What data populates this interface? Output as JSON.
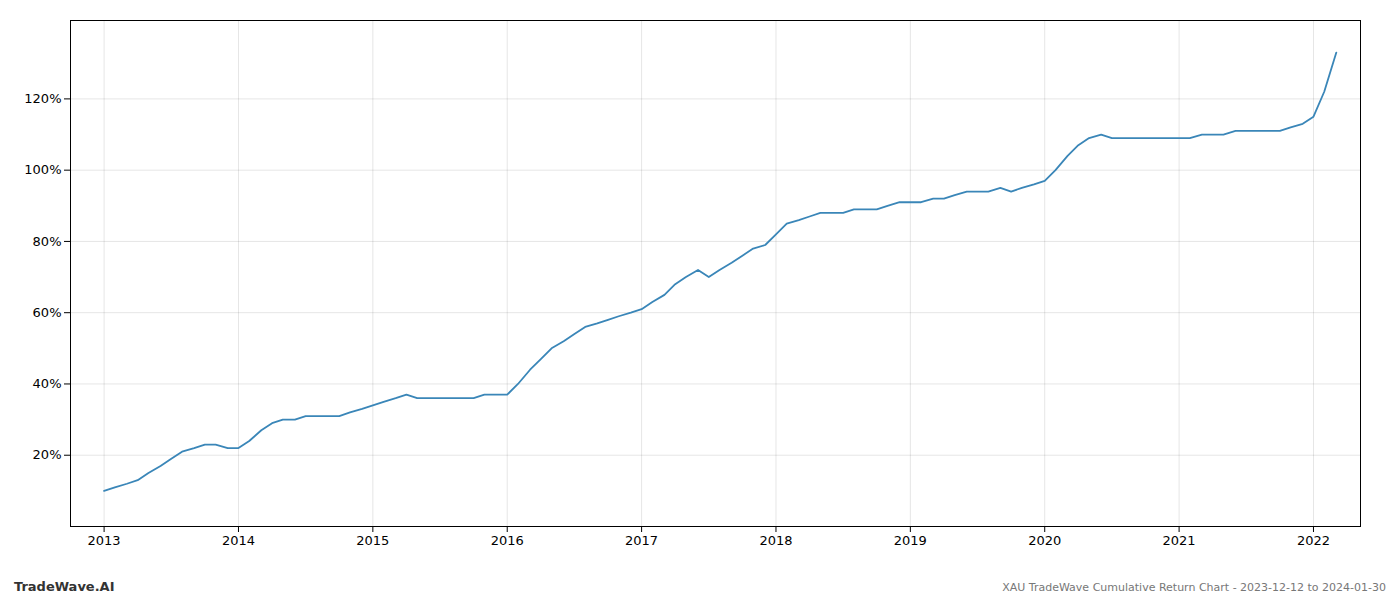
{
  "chart_data": {
    "type": "line",
    "title": "XAU TradeWave Cumulative Return Chart - 2023-12-12 to 2024-01-30",
    "annotations": [
      "TradeWave.AI"
    ],
    "color": "#3a86b8",
    "x": [
      2013.0,
      2013.08,
      2013.17,
      2013.25,
      2013.33,
      2013.42,
      2013.5,
      2013.58,
      2013.67,
      2013.75,
      2013.83,
      2013.92,
      2014.0,
      2014.08,
      2014.17,
      2014.25,
      2014.33,
      2014.42,
      2014.5,
      2014.58,
      2014.67,
      2014.75,
      2014.83,
      2014.92,
      2015.0,
      2015.08,
      2015.17,
      2015.25,
      2015.33,
      2015.42,
      2015.5,
      2015.58,
      2015.67,
      2015.75,
      2015.83,
      2015.92,
      2016.0,
      2016.08,
      2016.17,
      2016.25,
      2016.33,
      2016.42,
      2016.5,
      2016.58,
      2016.67,
      2016.75,
      2016.83,
      2016.92,
      2017.0,
      2017.08,
      2017.17,
      2017.25,
      2017.33,
      2017.42,
      2017.5,
      2017.58,
      2017.67,
      2017.75,
      2017.83,
      2017.92,
      2018.0,
      2018.08,
      2018.17,
      2018.25,
      2018.33,
      2018.42,
      2018.5,
      2018.58,
      2018.67,
      2018.75,
      2018.83,
      2018.92,
      2019.0,
      2019.08,
      2019.17,
      2019.25,
      2019.33,
      2019.42,
      2019.5,
      2019.58,
      2019.67,
      2019.75,
      2019.83,
      2019.92,
      2020.0,
      2020.08,
      2020.17,
      2020.25,
      2020.33,
      2020.42,
      2020.5,
      2020.58,
      2020.67,
      2020.75,
      2020.83,
      2020.92,
      2021.0,
      2021.08,
      2021.17,
      2021.25,
      2021.33,
      2021.42,
      2021.5,
      2021.58,
      2021.67,
      2021.75,
      2021.83,
      2021.92,
      2022.0,
      2022.08,
      2022.17
    ],
    "values": [
      10,
      11,
      12,
      13,
      15,
      17,
      19,
      21,
      22,
      23,
      23,
      22,
      22,
      24,
      27,
      29,
      30,
      30,
      31,
      31,
      31,
      31,
      32,
      33,
      34,
      35,
      36,
      37,
      36,
      36,
      36,
      36,
      36,
      36,
      37,
      37,
      37,
      40,
      44,
      47,
      50,
      52,
      54,
      56,
      57,
      58,
      59,
      60,
      61,
      63,
      65,
      68,
      70,
      72,
      70,
      72,
      74,
      76,
      78,
      79,
      82,
      85,
      86,
      87,
      88,
      88,
      88,
      89,
      89,
      89,
      90,
      91,
      91,
      91,
      92,
      92,
      93,
      94,
      94,
      94,
      95,
      94,
      95,
      96,
      97,
      100,
      104,
      107,
      109,
      110,
      109,
      109,
      109,
      109,
      109,
      109,
      109,
      109,
      110,
      110,
      110,
      111,
      111,
      111,
      111,
      111,
      112,
      113,
      115,
      122,
      133
    ],
    "xlim": [
      2012.75,
      2022.35
    ],
    "xticks": [
      2013,
      2014,
      2015,
      2016,
      2017,
      2018,
      2019,
      2020,
      2021,
      2022
    ],
    "ylim": [
      0,
      142
    ],
    "yticks": [
      {
        "value": 20,
        "label": "20%"
      },
      {
        "value": 40,
        "label": "40%"
      },
      {
        "value": 60,
        "label": "60%"
      },
      {
        "value": 80,
        "label": "80%"
      },
      {
        "value": 100,
        "label": "100%"
      },
      {
        "value": 120,
        "label": "120%"
      }
    ],
    "grid": true
  }
}
